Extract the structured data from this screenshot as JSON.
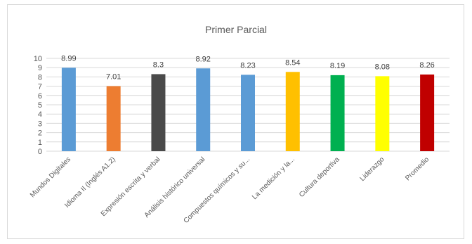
{
  "chart_data": {
    "type": "bar",
    "title": "Primer Parcial",
    "xlabel": "",
    "ylabel": "",
    "ylim": [
      0,
      10
    ],
    "yticks": [
      0,
      1,
      2,
      3,
      4,
      5,
      6,
      7,
      8,
      9,
      10
    ],
    "grid": true,
    "legend": "none",
    "categories": [
      "Mundos Digitales",
      "Idioma II (Inglés A1.2)",
      "Expresión escrita y verbal",
      "Análisis histórico universal",
      "Compuestos químicos y su...",
      "La medición y la...",
      "Cultura deportiva",
      "Liderazgo",
      "Promedio"
    ],
    "values": [
      8.99,
      7.01,
      8.3,
      8.92,
      8.23,
      8.54,
      8.19,
      8.08,
      8.26
    ],
    "value_labels": [
      "8.99",
      "7.01",
      "8.3",
      "8.92",
      "8.23",
      "8.54",
      "8.19",
      "8.08",
      "8.26"
    ],
    "colors": [
      "#5b9bd5",
      "#ed7d31",
      "#4a4a4a",
      "#5b9bd5",
      "#5b9bd5",
      "#ffc000",
      "#00b050",
      "#ffff00",
      "#c00000"
    ]
  }
}
